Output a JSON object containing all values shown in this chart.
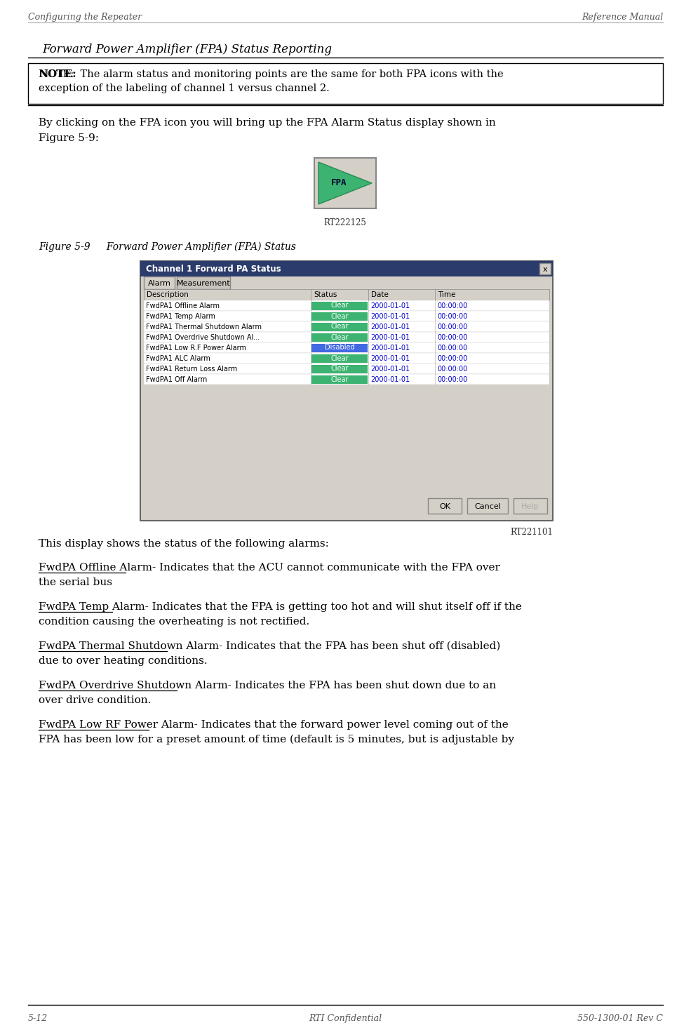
{
  "header_left": "Configuring the Repeater",
  "header_right": "Reference Manual",
  "footer_left": "5-12",
  "footer_center": "RTI Confidential",
  "footer_right": "550-1300-01 Rev C",
  "section_title": "Forward Power Amplifier (FPA) Status Reporting",
  "note_line1": "NOTE:  The alarm status and monitoring points are the same for both FPA icons with the",
  "note_line2": "exception of the labeling of channel 1 versus channel 2.",
  "note_bold": "NOTE:",
  "para1_line1": "By clicking on the FPA icon you will bring up the FPA Alarm Status display shown in",
  "para1_line2": "Figure 5-9:",
  "fpa_label": "RT222125",
  "figure_label": "Figure 5-9",
  "figure_caption": "     Forward Power Amplifier (FPA) Status",
  "dialog_title": "Channel 1 Forward PA Status",
  "dialog_tabs": [
    "Alarm",
    "Measurement"
  ],
  "table_headers": [
    "Description",
    "Status",
    "Date",
    "Time"
  ],
  "table_rows": [
    [
      "FwdPA1 Offline Alarm",
      "Clear",
      "2000-01-01",
      "00:00:00"
    ],
    [
      "FwdPA1 Temp Alarm",
      "Clear",
      "2000-01-01",
      "00:00:00"
    ],
    [
      "FwdPA1 Thermal Shutdown Alarm",
      "Clear",
      "2000-01-01",
      "00:00:00"
    ],
    [
      "FwdPA1 Overdrive Shutdown Al...",
      "Clear",
      "2000-01-01",
      "00:00:00"
    ],
    [
      "FwdPA1 Low R.F Power Alarm",
      "Disabled",
      "2000-01-01",
      "00:00:00"
    ],
    [
      "FwdPA1 ALC Alarm",
      "Clear",
      "2000-01-01",
      "00:00:00"
    ],
    [
      "FwdPA1 Return Loss Alarm",
      "Clear",
      "2000-01-01",
      "00:00:00"
    ],
    [
      "FwdPA1 Off Alarm",
      "Clear",
      "2000-01-01",
      "00:00:00"
    ]
  ],
  "rt221101": "RT221101",
  "body_text": "This display shows the status of the following alarms:",
  "alarm_items": [
    {
      "term": "FwdPA Offline Alarm",
      "text_line1": "- Indicates that the ACU cannot communicate with the FPA over",
      "text_line2": "the serial bus"
    },
    {
      "term": "FwdPA Temp Alarm",
      "text_line1": "- Indicates that the FPA is getting too hot and will shut itself off if the",
      "text_line2": "condition causing the overheating is not rectified."
    },
    {
      "term": "FwdPA Thermal Shutdown Alarm",
      "text_line1": "- Indicates that the FPA has been shut off (disabled)",
      "text_line2": "due to over heating conditions."
    },
    {
      "term": "FwdPA Overdrive Shutdown Alarm",
      "text_line1": "- Indicates the FPA has been shut down due to an",
      "text_line2": "over drive condition."
    },
    {
      "term": "FwdPA Low RF Power Alarm",
      "text_line1": "- Indicates that the forward power level coming out of the",
      "text_line2": "FPA has been low for a preset amount of time (default is 5 minutes, but is adjustable by"
    }
  ],
  "bg_color": "#ffffff",
  "text_color": "#000000",
  "dialog_title_bg": "#2b3b6b",
  "dialog_title_fg": "#ffffff",
  "dialog_bg": "#d4d0c8",
  "green_status": "#3cb371",
  "blue_status": "#4169e1"
}
